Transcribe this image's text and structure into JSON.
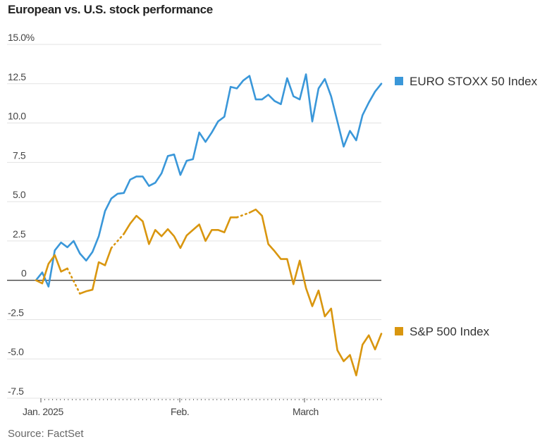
{
  "chart_data": {
    "type": "line",
    "title": "European vs. U.S. stock performance",
    "source": "Source: FactSet",
    "xlabel": "",
    "ylabel": "",
    "y_unit_suffix": "%",
    "ylim": [
      -7.5,
      15.0
    ],
    "yticks": [
      15.0,
      12.5,
      10.0,
      7.5,
      5.0,
      2.5,
      0,
      -2.5,
      -5.0,
      -7.5
    ],
    "ytick_labels": [
      "15.0%",
      "12.5",
      "10.0",
      "7.5",
      "5.0",
      "2.5",
      "0",
      "-2.5",
      "-5.0",
      "-7.5"
    ],
    "x_axis": {
      "start_label": "Jan. 2025",
      "tick_labels": [
        {
          "label": "Jan. 2025",
          "day_index": 1
        },
        {
          "label": "Feb.",
          "day_index": 23
        },
        {
          "label": "March",
          "day_index": 43
        }
      ],
      "days_total": 56
    },
    "grid": true,
    "legend": "right",
    "series": [
      {
        "name": "EURO STOXX 50 Index",
        "color": "#3a97d9",
        "x": [
          0,
          1,
          2,
          3,
          4,
          5,
          6,
          7,
          8,
          9,
          10,
          11,
          12,
          13,
          14,
          15,
          16,
          17,
          18,
          19,
          20,
          21,
          22,
          23,
          24,
          25,
          26,
          27,
          28,
          29,
          30,
          31,
          32,
          33,
          34,
          35,
          36,
          37,
          38,
          39,
          40,
          41,
          42,
          43,
          44,
          45,
          46,
          47,
          48,
          49,
          50,
          51,
          52,
          53,
          54,
          55
        ],
        "values": [
          0,
          0.5,
          -0.4,
          1.9,
          2.4,
          2.1,
          2.5,
          1.7,
          1.25,
          1.8,
          2.8,
          4.4,
          5.2,
          5.5,
          5.55,
          6.4,
          6.6,
          6.6,
          6.0,
          6.2,
          6.8,
          7.9,
          8.0,
          6.7,
          7.6,
          7.7,
          9.4,
          8.8,
          9.4,
          10.1,
          10.4,
          12.3,
          12.2,
          12.7,
          13.0,
          11.5,
          11.5,
          11.8,
          11.4,
          11.2,
          12.85,
          11.7,
          11.5,
          13.1,
          10.1,
          12.2,
          12.8,
          11.7,
          10.1,
          8.5,
          9.5,
          8.9,
          10.5,
          11.3,
          12.0,
          12.5
        ]
      },
      {
        "name": "S&P 500 Index",
        "color": "#d9960f",
        "x": [
          0,
          1,
          2,
          3,
          4,
          5,
          6,
          7,
          8,
          9,
          10,
          11,
          12,
          13,
          14,
          15,
          16,
          17,
          18,
          19,
          20,
          21,
          22,
          23,
          24,
          25,
          26,
          27,
          28,
          29,
          30,
          31,
          32,
          33,
          34,
          35,
          36,
          37,
          38,
          39,
          40,
          41,
          42,
          43,
          44,
          45,
          46,
          47,
          48,
          49,
          50,
          51,
          52,
          53,
          54,
          55
        ],
        "values": [
          0,
          -0.2,
          1.05,
          1.6,
          0.55,
          0.75,
          null,
          -0.85,
          -0.7,
          -0.6,
          1.15,
          0.95,
          2.05,
          null,
          2.95,
          3.6,
          4.1,
          3.75,
          2.3,
          3.2,
          2.8,
          3.25,
          2.8,
          2.05,
          2.85,
          3.2,
          3.55,
          2.5,
          3.2,
          3.2,
          3.05,
          4.0,
          4.0,
          null,
          4.3,
          4.5,
          4.1,
          2.3,
          1.85,
          1.35,
          1.35,
          -0.25,
          1.25,
          -0.5,
          -1.65,
          -0.65,
          -2.3,
          -1.8,
          -4.45,
          -5.15,
          -4.75,
          -6.05,
          -4.1,
          -3.5,
          -4.4,
          -3.4
        ],
        "gap_style": "dotted"
      }
    ]
  }
}
